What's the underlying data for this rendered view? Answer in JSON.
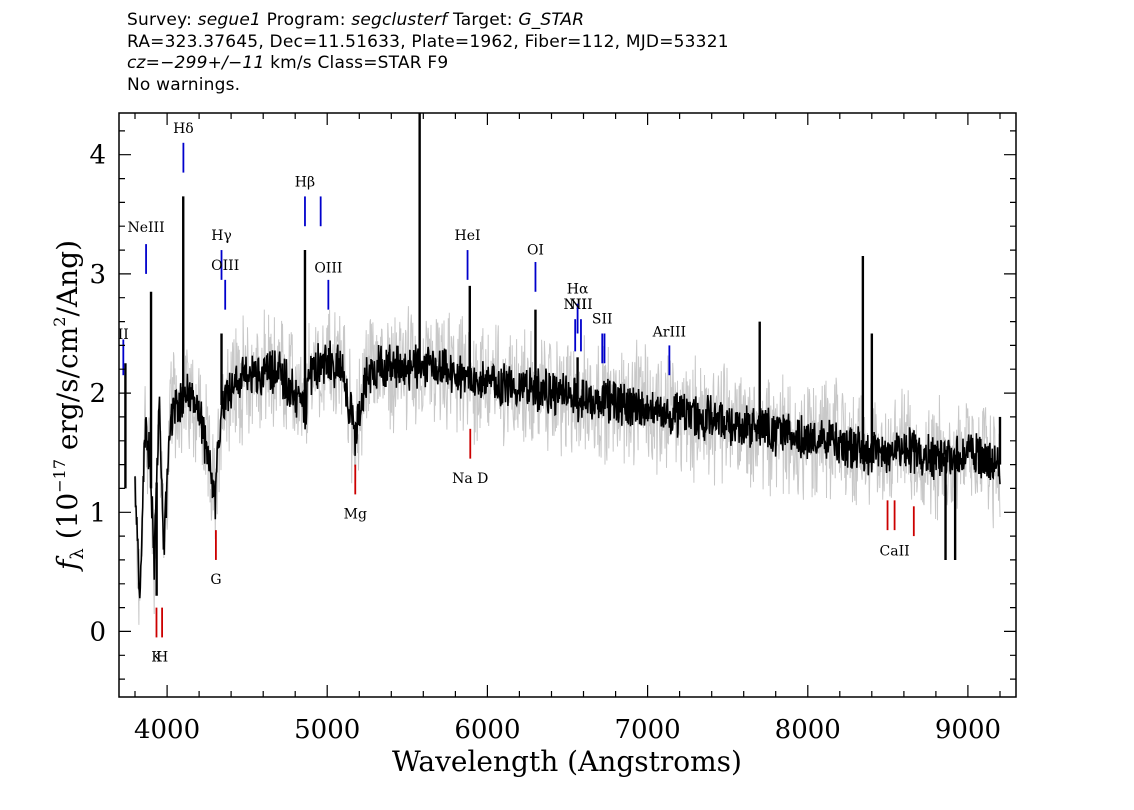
{
  "header": {
    "line1": {
      "survey_label": "Survey: ",
      "survey": "segue1",
      "program_label": " Program: ",
      "program": "segclusterf",
      "target_label": " Target: ",
      "target": "G_STAR"
    },
    "line2": "RA=323.37645, Dec=11.51633, Plate=1962, Fiber=112, MJD=53321",
    "line3": {
      "cz": "cz=−299+/−11",
      "rest": " km/s Class=STAR F9"
    },
    "line4": "No warnings."
  },
  "colors": {
    "flux": "#000000",
    "error": "#c8c8c8",
    "emission": "#0000cc",
    "absorption": "#cc0000"
  },
  "chart_data": {
    "type": "line",
    "title": "",
    "xlabel": "Wavelength (Angstroms)",
    "ylabel": {
      "f": "f",
      "sub": "λ",
      "unit_pre": " (10",
      "exp": "−17",
      "unit_mid": " erg/s/cm",
      "exp2": "2",
      "unit_post": "/Ang)"
    },
    "xlim": [
      3700,
      9300
    ],
    "ylim": [
      -0.55,
      4.35
    ],
    "xticks": [
      4000,
      5000,
      6000,
      7000,
      8000,
      9000
    ],
    "xtick_labels": [
      "4000",
      "5000",
      "6000",
      "7000",
      "8000",
      "9000"
    ],
    "yticks": [
      0,
      1,
      2,
      3,
      4
    ],
    "ytick_labels": [
      "0",
      "1",
      "2",
      "3",
      "4"
    ],
    "grid": false,
    "legend": "none",
    "series": [
      {
        "role": "flux",
        "x": [
          3800,
          3830,
          3860,
          3890,
          3920,
          3950,
          3980,
          4020,
          4060,
          4100,
          4150,
          4200,
          4260,
          4300,
          4340,
          4380,
          4450,
          4550,
          4700,
          4861,
          4900,
          5000,
          5100,
          5175,
          5250,
          5400,
          5550,
          5650,
          5800,
          5890,
          6000,
          6200,
          6400,
          6563,
          6700,
          6900,
          7100,
          7300,
          7500,
          7700,
          7900,
          8100,
          8300,
          8400,
          8500,
          8600,
          8800,
          9000,
          9100,
          9200
        ],
        "y": [
          1.2,
          0.2,
          1.7,
          1.5,
          0.6,
          1.9,
          0.7,
          1.8,
          1.9,
          2.0,
          1.95,
          1.85,
          1.4,
          1.1,
          1.9,
          2.05,
          2.1,
          2.15,
          2.2,
          1.85,
          2.2,
          2.25,
          2.2,
          1.6,
          2.2,
          2.22,
          2.2,
          2.2,
          2.15,
          2.1,
          2.1,
          2.05,
          2.0,
          1.95,
          1.95,
          1.9,
          1.85,
          1.8,
          1.75,
          1.7,
          1.65,
          1.6,
          1.55,
          1.5,
          1.5,
          1.55,
          1.45,
          1.5,
          1.45,
          1.4
        ]
      },
      {
        "role": "spikes",
        "x": [
          3740,
          3900,
          3935,
          4101,
          4340,
          4861,
          5577,
          5890,
          6300,
          6563,
          7700,
          8344,
          8400,
          8860,
          8920,
          9200
        ],
        "y": [
          2.25,
          2.85,
          0.3,
          3.65,
          2.5,
          3.2,
          4.35,
          2.9,
          2.7,
          2.3,
          2.6,
          3.15,
          2.5,
          0.6,
          0.6,
          1.8
        ]
      }
    ],
    "emission_lines": [
      {
        "label": "II",
        "x": 3727,
        "y1": 2.15,
        "y2": 2.45,
        "label_y": 2.42
      },
      {
        "label": "NeIII",
        "x": 3869,
        "y1": 3.0,
        "y2": 3.25,
        "label_y": 3.32
      },
      {
        "label": "Hδ",
        "x": 4102,
        "y1": 3.85,
        "y2": 4.1,
        "label_y": 4.15
      },
      {
        "label": "Hγ",
        "x": 4340,
        "y1": 2.95,
        "y2": 3.2,
        "label_y": 3.25
      },
      {
        "label": "OIII",
        "x": 4363,
        "y1": 2.7,
        "y2": 2.95,
        "label_y": 3.0
      },
      {
        "label": "Hβ",
        "x": 4861,
        "y1": 3.4,
        "y2": 3.65,
        "label_y": 3.7
      },
      {
        "label": "",
        "x": 4959,
        "y1": 3.4,
        "y2": 3.65,
        "label_y": 3.7
      },
      {
        "label": "OIII",
        "x": 5007,
        "y1": 2.7,
        "y2": 2.95,
        "label_y": 2.98
      },
      {
        "label": "HeI",
        "x": 5876,
        "y1": 2.95,
        "y2": 3.2,
        "label_y": 3.25
      },
      {
        "label": "OI",
        "x": 6300,
        "y1": 2.85,
        "y2": 3.1,
        "label_y": 3.13
      },
      {
        "label": "NII",
        "x": 6548,
        "y1": 2.35,
        "y2": 2.62,
        "label_y": 2.67
      },
      {
        "label": "Hα",
        "x": 6563,
        "y1": 2.5,
        "y2": 2.75,
        "label_y": 2.8
      },
      {
        "label": "NII",
        "x": 6584,
        "y1": 2.35,
        "y2": 2.62,
        "label_y": 2.67
      },
      {
        "label": "SII",
        "x": 6717,
        "y1": 2.25,
        "y2": 2.5,
        "label_y": 2.55
      },
      {
        "label": "",
        "x": 6731,
        "y1": 2.25,
        "y2": 2.5,
        "label_y": 2.55
      },
      {
        "label": "ArIII",
        "x": 7136,
        "y1": 2.15,
        "y2": 2.4,
        "label_y": 2.44
      }
    ],
    "absorption_lines": [
      {
        "label": "K",
        "x": 3934,
        "y1": -0.05,
        "y2": 0.2,
        "label_y": -0.17
      },
      {
        "label": "H",
        "x": 3969,
        "y1": -0.05,
        "y2": 0.2,
        "label_y": -0.17
      },
      {
        "label": "G",
        "x": 4305,
        "y1": 0.6,
        "y2": 0.85,
        "label_y": 0.48
      },
      {
        "label": "Mg",
        "x": 5175,
        "y1": 1.15,
        "y2": 1.4,
        "label_y": 1.03
      },
      {
        "label": "Na D",
        "x": 5893,
        "y1": 1.45,
        "y2": 1.7,
        "label_y": 1.33
      },
      {
        "label": "CaII",
        "x": 8542,
        "y1": 0.85,
        "y2": 1.1,
        "label_y": 0.72
      },
      {
        "label": "",
        "x": 8498,
        "y1": 0.85,
        "y2": 1.1,
        "label_y": 0.72
      },
      {
        "label": "",
        "x": 8662,
        "y1": 0.8,
        "y2": 1.05,
        "label_y": 0.72
      }
    ]
  }
}
